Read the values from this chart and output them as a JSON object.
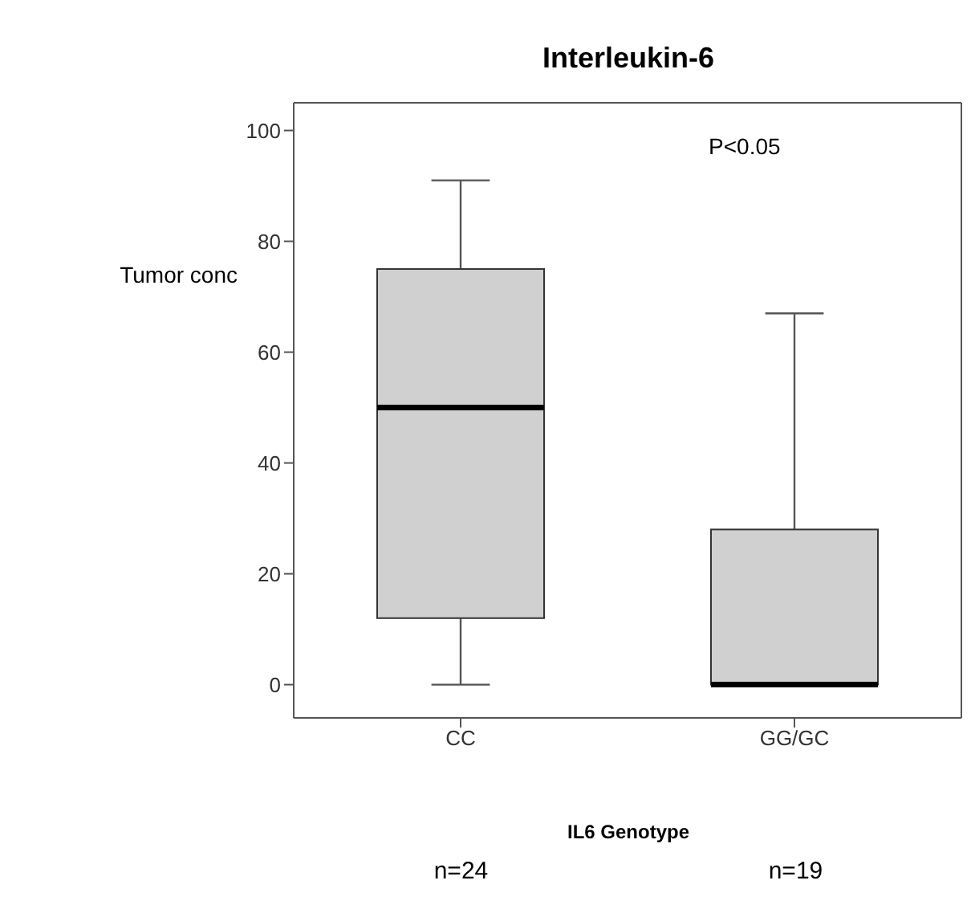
{
  "chart_data": {
    "type": "box",
    "title": "Interleukin-6",
    "xlabel": "IL6 Genotype",
    "ylabel": "Tumor conc",
    "categories": [
      "CC",
      "GG/GC"
    ],
    "boxes": [
      {
        "low": 0,
        "q1": 12,
        "median": 50,
        "q3": 75,
        "high": 91
      },
      {
        "low": 0,
        "q1": 0,
        "median": 0,
        "q3": 28,
        "high": 67
      }
    ],
    "color": "#d0d0d0",
    "ylim": [
      -6,
      105
    ],
    "yticks": [
      0,
      20,
      40,
      60,
      80,
      100
    ],
    "annotations": [
      "P<0.05",
      "n=24",
      "n=19"
    ]
  }
}
